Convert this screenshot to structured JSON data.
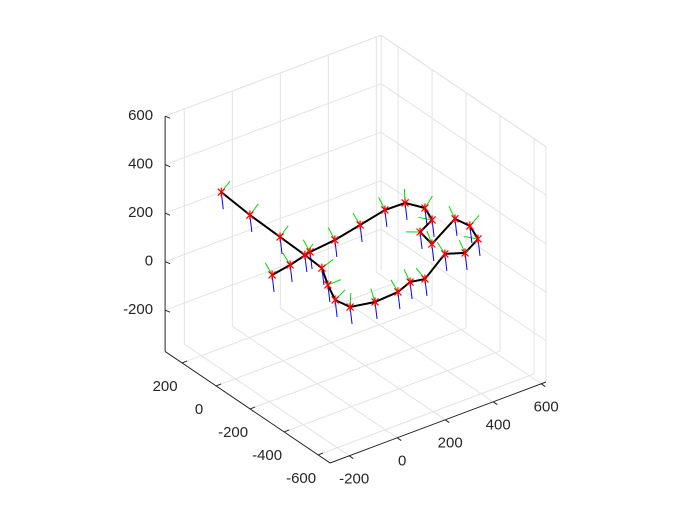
{
  "chart_data": {
    "type": "line3d",
    "xlim": [
      -280,
      620
    ],
    "ylim": [
      -670,
      300
    ],
    "zlim": [
      -370,
      600
    ],
    "xticks": [
      -200,
      0,
      200,
      400,
      600
    ],
    "yticks": [
      -600,
      -400,
      -200,
      0,
      200
    ],
    "zticks": [
      -200,
      0,
      200,
      400,
      600
    ],
    "grid": true,
    "series": [
      {
        "color": "#000000",
        "marker_color": "#ff0000",
        "x": [
          -46,
          -60,
          -66,
          -71,
          -77,
          -128,
          -168,
          -156,
          -69,
          32,
          104,
          156,
          251,
          309,
          399,
          429,
          417,
          313,
          329,
          409,
          437,
          404,
          322,
          196,
          69,
          -45,
          -150,
          -238
        ],
        "y": [
          300,
          112,
          -74,
          -227,
          -336,
          -443,
          -542,
          -613,
          -637,
          -629,
          -599,
          -613,
          -596,
          -633,
          -582,
          -492,
          -421,
          -432,
          -340,
          -298,
          -216,
          -146,
          -143,
          -175,
          -206,
          -221,
          -252,
          -270
        ],
        "z": [
          200,
          200,
          200,
          200,
          200,
          200,
          200,
          200,
          200,
          200,
          200,
          200,
          260,
          260,
          260,
          260,
          260,
          200,
          200,
          200,
          200,
          200,
          200,
          200,
          200,
          200,
          200,
          200
        ]
      }
    ]
  }
}
